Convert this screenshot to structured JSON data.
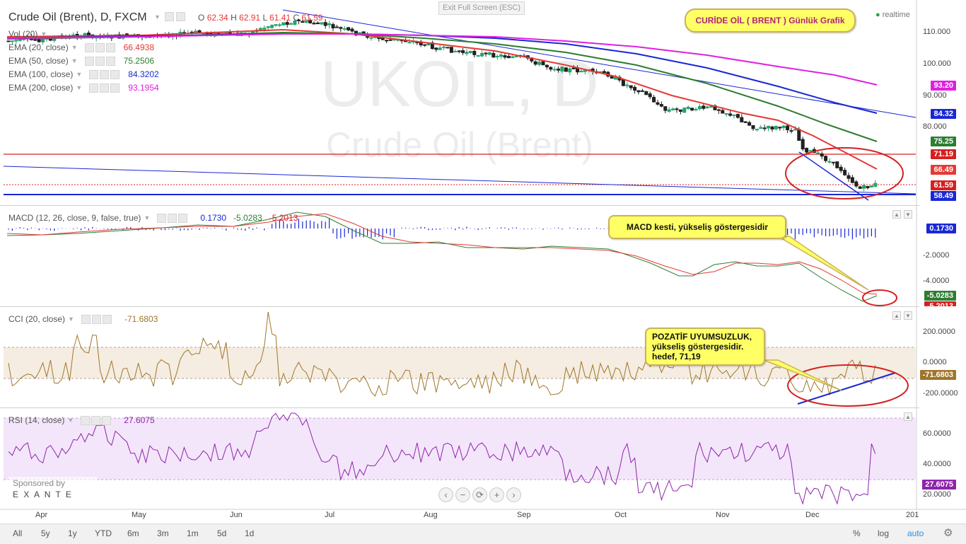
{
  "header": {
    "title": "Crude Oil (Brent), D, FXCM",
    "ohlc": {
      "o_label": "O",
      "o": "62.34",
      "h_label": "H",
      "h": "62.91",
      "l_label": "L",
      "l": "61.41",
      "c_label": "C",
      "c": "61.59"
    },
    "exit_fullscreen": "Exit Full Screen (ESC)",
    "realtime": "realtime",
    "watermark_symbol": "UKOIL, D",
    "watermark_name": "Crude Oil (Brent)"
  },
  "main_pane": {
    "studies": [
      {
        "label": "Vol (20)",
        "value": ""
      },
      {
        "label": "EMA (20, close)",
        "value": "66.4938",
        "color": "#e53935"
      },
      {
        "label": "EMA (50, close)",
        "value": "75.2506",
        "color": "#2e7d32"
      },
      {
        "label": "EMA (100, close)",
        "value": "84.3202",
        "color": "#1a27d6"
      },
      {
        "label": "EMA (200, close)",
        "value": "93.1954",
        "color": "#e020e0"
      }
    ],
    "price_axis": [
      "110.000",
      "100.000",
      "90.000",
      "80.000"
    ],
    "badges": [
      {
        "text": "93.20",
        "color": "#e020e0"
      },
      {
        "text": "84.32",
        "color": "#1a27d6"
      },
      {
        "text": "75.25",
        "color": "#2e7d32"
      },
      {
        "text": "71.19",
        "color": "#d62020"
      },
      {
        "text": "66.49",
        "color": "#e53935"
      },
      {
        "text": "61.59",
        "color": "#d62020"
      },
      {
        "text": "58.49",
        "color": "#1a27d6"
      }
    ],
    "callout": "CURİDE OİL ( BRENT ) Günlük Grafik"
  },
  "macd_pane": {
    "label": "MACD (12, 26, close, 9, false, true)",
    "values": [
      "0.1730",
      "-5.0283",
      "-5.2013"
    ],
    "axis": [
      "-2.0000",
      "-4.0000"
    ],
    "badges": [
      {
        "text": "0.1730",
        "color": "#1a27d6"
      },
      {
        "text": "-5.0283",
        "color": "#2e7d32"
      },
      {
        "text": "-5.2013",
        "color": "#d62020"
      }
    ],
    "callout": "MACD kesti, yükseliş göstergesidir"
  },
  "cci_pane": {
    "label": "CCI (20, close)",
    "value": "-71.6803",
    "axis": [
      "200.0000",
      "0.0000",
      "-200.0000"
    ],
    "badge": {
      "text": "-71.6803",
      "color": "#a0752a"
    },
    "callout_lines": [
      "POZATİF UYUMSUZLUK,",
      "yükseliş göstergesidir.",
      "hedef, 71,19"
    ]
  },
  "rsi_pane": {
    "label": "RSI (14, close)",
    "value": "27.6075",
    "axis": [
      "60.0000",
      "40.0000",
      "20.0000"
    ],
    "badge": {
      "text": "27.6075",
      "color": "#8e24aa"
    },
    "sponsor_line1": "Sponsored by",
    "sponsor_line2": "E X A N T E"
  },
  "time_axis": [
    "Apr",
    "May",
    "Jun",
    "Jul",
    "Aug",
    "Sep",
    "Oct",
    "Nov",
    "Dec",
    "201"
  ],
  "nav_buttons": [
    "‹",
    "−",
    "⟳",
    "+",
    "›"
  ],
  "bottom_bar": {
    "timeframes": [
      "All",
      "5y",
      "1y",
      "YTD",
      "6m",
      "3m",
      "1m",
      "5d",
      "1d"
    ],
    "right": [
      "%",
      "log",
      "auto"
    ]
  },
  "colors": {
    "ema20": "#e53935",
    "ema50": "#2e7d32",
    "ema100": "#1a27d6",
    "ema200": "#e020e0",
    "candle_up": "#26a269",
    "candle_down": "#1d1d1d",
    "callout_bg": "#ffff66"
  }
}
